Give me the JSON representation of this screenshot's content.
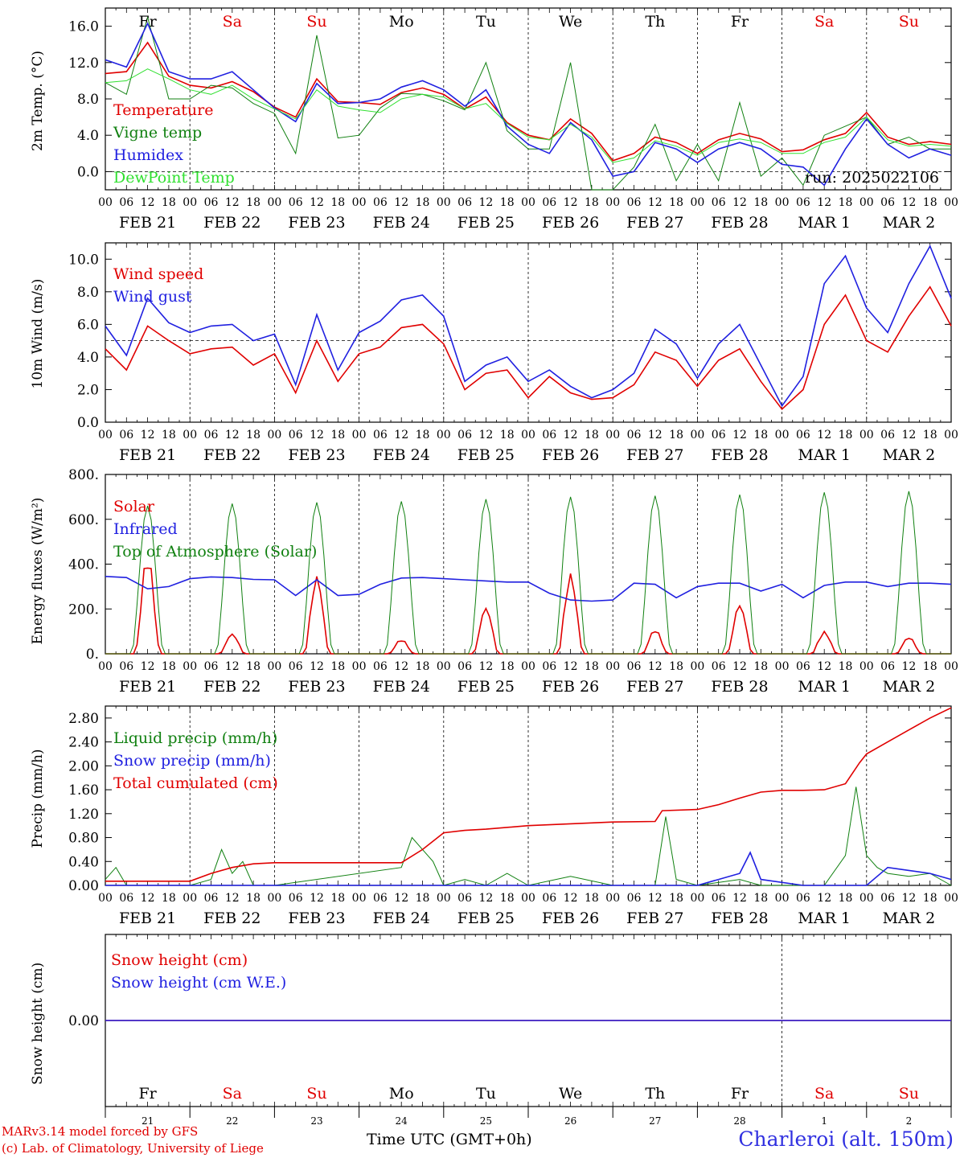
{
  "run_label": "run: 2025022106",
  "hour_ticks": [
    "00",
    "06",
    "12",
    "18"
  ],
  "days": [
    {
      "abbr": "Fr",
      "date": "FEB  21",
      "num": "21",
      "weekend": false
    },
    {
      "abbr": "Sa",
      "date": "FEB  22",
      "num": "22",
      "weekend": true
    },
    {
      "abbr": "Su",
      "date": "FEB  23",
      "num": "23",
      "weekend": true
    },
    {
      "abbr": "Mo",
      "date": "FEB  24",
      "num": "24",
      "weekend": false
    },
    {
      "abbr": "Tu",
      "date": "FEB  25",
      "num": "25",
      "weekend": false
    },
    {
      "abbr": "We",
      "date": "FEB  26",
      "num": "26",
      "weekend": false
    },
    {
      "abbr": "Th",
      "date": "FEB  27",
      "num": "27",
      "weekend": false
    },
    {
      "abbr": "Fr",
      "date": "FEB  28",
      "num": "28",
      "weekend": false
    },
    {
      "abbr": "Sa",
      "date": "MAR   1",
      "num": "1",
      "weekend": true
    },
    {
      "abbr": "Su",
      "date": "MAR   2",
      "num": "2",
      "weekend": true
    }
  ],
  "colors": {
    "red": "#e00000",
    "green": "#108010",
    "blue": "#2020e0",
    "lightgreen": "#30e030",
    "weekend": "#e00000"
  },
  "footer": {
    "model_line": "MARv3.14 model forced by GFS",
    "credit_line": "(c) Lab. of Climatology, University of Liege",
    "axis_label": "Time UTC (GMT+0h)",
    "station": "Charleroi (alt. 150m)"
  },
  "chart_data": [
    {
      "type": "line",
      "ylabel": "2m Temp. (°C)",
      "ylim": [
        -2,
        18
      ],
      "yticks": [
        0,
        4,
        8,
        12,
        16
      ],
      "ytick_labels": [
        "0.0",
        "4.0",
        "8.0",
        "12.0",
        "16.0"
      ],
      "ref_line": 0,
      "x_unit": "hours from FEB 21 00 UTC",
      "series": [
        {
          "name": "Temperature",
          "color": "red",
          "x": [
            0,
            6,
            12,
            18,
            24,
            30,
            36,
            42,
            48,
            54,
            60,
            66,
            72,
            78,
            84,
            90,
            96,
            102,
            108,
            114,
            120,
            126,
            132,
            138,
            144,
            150,
            156,
            162,
            168,
            174,
            180,
            186,
            192,
            198,
            204,
            210,
            216,
            222,
            228,
            234,
            240
          ],
          "y": [
            10.8,
            11.0,
            14.2,
            10.5,
            9.5,
            9.2,
            9.9,
            8.8,
            7.1,
            6.0,
            10.2,
            7.7,
            7.6,
            7.4,
            8.7,
            9.2,
            8.5,
            6.9,
            8.2,
            5.4,
            4.0,
            3.5,
            5.8,
            4.2,
            1.2,
            2.0,
            3.8,
            3.2,
            2.0,
            3.5,
            4.2,
            3.6,
            2.2,
            2.4,
            3.5,
            4.2,
            6.5,
            3.8,
            3.0,
            3.3,
            3.0
          ]
        },
        {
          "name": "Vigne temp",
          "color": "green",
          "x": [
            0,
            6,
            12,
            18,
            24,
            30,
            36,
            42,
            48,
            54,
            60,
            66,
            72,
            78,
            84,
            90,
            96,
            102,
            108,
            114,
            120,
            126,
            132,
            138,
            144,
            150,
            156,
            162,
            168,
            174,
            180,
            186,
            192,
            198,
            204,
            210,
            216,
            222,
            228,
            234,
            240
          ],
          "y": [
            9.8,
            8.5,
            17.0,
            8.0,
            8.0,
            9.5,
            9.2,
            7.5,
            6.4,
            2.0,
            15.0,
            3.7,
            4.0,
            7.0,
            8.6,
            8.5,
            7.8,
            6.8,
            12.0,
            4.5,
            2.5,
            2.5,
            12.0,
            -2.0,
            -3.0,
            0.5,
            5.2,
            -1.0,
            3.0,
            -1.0,
            7.6,
            -0.5,
            1.5,
            -1.5,
            4.0,
            5.0,
            6.0,
            3.0,
            3.8,
            2.5,
            2.5
          ]
        },
        {
          "name": "Humidex",
          "color": "blue",
          "x": [
            0,
            6,
            12,
            18,
            24,
            30,
            36,
            42,
            48,
            54,
            60,
            66,
            72,
            78,
            84,
            90,
            96,
            102,
            108,
            114,
            120,
            126,
            132,
            138,
            144,
            150,
            156,
            162,
            168,
            174,
            180,
            186,
            192,
            198,
            204,
            210,
            216,
            222,
            228,
            234,
            240
          ],
          "y": [
            12.3,
            11.5,
            16.3,
            11.0,
            10.2,
            10.2,
            11.0,
            9.0,
            7.0,
            5.5,
            9.7,
            7.5,
            7.6,
            8.0,
            9.3,
            10.0,
            9.0,
            7.2,
            9.0,
            5.0,
            3.0,
            2.0,
            5.4,
            3.5,
            -0.5,
            0.0,
            3.2,
            2.5,
            1.0,
            2.5,
            3.2,
            2.5,
            0.8,
            0.5,
            -1.5,
            2.5,
            5.8,
            3.0,
            1.5,
            2.5,
            1.8
          ]
        },
        {
          "name": "DewPoint Temp",
          "color": "lightgreen",
          "x": [
            0,
            6,
            12,
            18,
            24,
            30,
            36,
            42,
            48,
            54,
            60,
            66,
            72,
            78,
            84,
            90,
            96,
            102,
            108,
            114,
            120,
            126,
            132,
            138,
            144,
            150,
            156,
            162,
            168,
            174,
            180,
            186,
            192,
            198,
            204,
            210,
            216,
            222,
            228,
            234,
            240
          ],
          "y": [
            9.8,
            10.0,
            11.3,
            10.2,
            9.0,
            8.5,
            9.5,
            8.0,
            6.9,
            5.8,
            9.0,
            7.2,
            6.8,
            6.5,
            8.0,
            8.5,
            8.2,
            6.9,
            7.5,
            5.3,
            3.8,
            3.5,
            5.2,
            3.8,
            1.0,
            1.5,
            3.4,
            2.8,
            1.8,
            3.2,
            3.6,
            3.2,
            2.0,
            2.0,
            3.2,
            3.8,
            6.0,
            3.5,
            2.8,
            3.0,
            2.8
          ]
        }
      ]
    },
    {
      "type": "line",
      "ylabel": "10m Wind (m/s)",
      "ylim": [
        0,
        11
      ],
      "yticks": [
        0,
        2,
        4,
        6,
        8,
        10
      ],
      "ytick_labels": [
        "0.0",
        "2.0",
        "4.0",
        "6.0",
        "8.0",
        "10.0"
      ],
      "ref_line": 5,
      "x_unit": "hours from FEB 21 00 UTC",
      "series": [
        {
          "name": "Wind speed",
          "color": "red",
          "x": [
            0,
            6,
            12,
            18,
            24,
            30,
            36,
            42,
            48,
            54,
            60,
            66,
            72,
            78,
            84,
            90,
            96,
            102,
            108,
            114,
            120,
            126,
            132,
            138,
            144,
            150,
            156,
            162,
            168,
            174,
            180,
            186,
            192,
            198,
            204,
            210,
            216,
            222,
            228,
            234,
            240
          ],
          "y": [
            4.5,
            3.2,
            5.9,
            5.0,
            4.2,
            4.5,
            4.6,
            3.5,
            4.2,
            1.8,
            5.0,
            2.5,
            4.2,
            4.6,
            5.8,
            6.0,
            4.8,
            2.0,
            3.0,
            3.2,
            1.5,
            2.8,
            1.8,
            1.4,
            1.5,
            2.3,
            4.3,
            3.8,
            2.2,
            3.8,
            4.5,
            2.5,
            0.8,
            2.0,
            6.0,
            7.8,
            5.0,
            4.3,
            6.5,
            8.3,
            5.9
          ]
        },
        {
          "name": "Wind gust",
          "color": "blue",
          "x": [
            0,
            6,
            12,
            18,
            24,
            30,
            36,
            42,
            48,
            54,
            60,
            66,
            72,
            78,
            84,
            90,
            96,
            102,
            108,
            114,
            120,
            126,
            132,
            138,
            144,
            150,
            156,
            162,
            168,
            174,
            180,
            186,
            192,
            198,
            204,
            210,
            216,
            222,
            228,
            234,
            240
          ],
          "y": [
            5.9,
            4.1,
            7.6,
            6.1,
            5.5,
            5.9,
            6.0,
            5.0,
            5.4,
            2.3,
            6.6,
            3.2,
            5.5,
            6.2,
            7.5,
            7.8,
            6.5,
            2.5,
            3.5,
            4.0,
            2.5,
            3.2,
            2.2,
            1.5,
            2.0,
            3.0,
            5.7,
            4.8,
            2.7,
            4.8,
            6.0,
            3.5,
            1.0,
            2.8,
            8.5,
            10.2,
            7.0,
            5.5,
            8.5,
            10.8,
            7.6
          ]
        }
      ]
    },
    {
      "type": "line",
      "ylabel": "Energy fluxes (W/m²)",
      "ylim": [
        0,
        800
      ],
      "yticks": [
        0,
        200,
        400,
        600,
        800
      ],
      "ytick_labels": [
        "0.",
        "200.",
        "400.",
        "600.",
        "800."
      ],
      "x_unit": "hours from FEB 21 00 UTC",
      "series": [
        {
          "name": "Solar",
          "color": "red",
          "peaks": [
            {
              "day": 0,
              "value": 450
            },
            {
              "day": 1,
              "value": 90
            },
            {
              "day": 2,
              "value": 350
            },
            {
              "day": 3,
              "value": 65
            },
            {
              "day": 4,
              "value": 210
            },
            {
              "day": 5,
              "value": 360
            },
            {
              "day": 6,
              "value": 110
            },
            {
              "day": 7,
              "value": 225
            },
            {
              "day": 8,
              "value": 100
            },
            {
              "day": 9,
              "value": 75
            }
          ]
        },
        {
          "name": "Infrared",
          "color": "blue",
          "x": [
            0,
            6,
            12,
            18,
            24,
            30,
            36,
            42,
            48,
            54,
            60,
            66,
            72,
            78,
            84,
            90,
            96,
            102,
            108,
            114,
            120,
            126,
            132,
            138,
            144,
            150,
            156,
            162,
            168,
            174,
            180,
            186,
            192,
            198,
            204,
            210,
            216,
            222,
            228,
            234,
            240
          ],
          "y": [
            345,
            340,
            290,
            300,
            335,
            343,
            340,
            332,
            330,
            260,
            330,
            260,
            265,
            310,
            338,
            340,
            335,
            330,
            325,
            320,
            320,
            270,
            240,
            235,
            240,
            315,
            310,
            250,
            300,
            315,
            315,
            280,
            310,
            250,
            305,
            320,
            320,
            300,
            315,
            315,
            310
          ]
        },
        {
          "name": "Top of Atmosphere (Solar)",
          "color": "green",
          "peaks": [
            {
              "day": 0,
              "value": 660
            },
            {
              "day": 1,
              "value": 670
            },
            {
              "day": 2,
              "value": 675
            },
            {
              "day": 3,
              "value": 680
            },
            {
              "day": 4,
              "value": 690
            },
            {
              "day": 5,
              "value": 700
            },
            {
              "day": 6,
              "value": 705
            },
            {
              "day": 7,
              "value": 710
            },
            {
              "day": 8,
              "value": 720
            },
            {
              "day": 9,
              "value": 725
            }
          ]
        }
      ]
    },
    {
      "type": "line",
      "ylabel": "Precip (mm/h)",
      "ylim": [
        0,
        3.0
      ],
      "yticks": [
        0,
        0.4,
        0.8,
        1.2,
        1.6,
        2.0,
        2.4,
        2.8
      ],
      "ytick_labels": [
        "0.00",
        "0.40",
        "0.80",
        "1.20",
        "1.60",
        "2.00",
        "2.40",
        "2.80"
      ],
      "x_unit": "hours from FEB 21 00 UTC",
      "series": [
        {
          "name": "Liquid precip (mm/h)",
          "color": "green",
          "x": [
            0,
            3,
            6,
            24,
            30,
            33,
            36,
            39,
            42,
            48,
            84,
            87,
            90,
            93,
            96,
            102,
            108,
            114,
            120,
            132,
            144,
            156,
            159,
            162,
            168,
            180,
            186,
            198,
            204,
            210,
            213,
            216,
            219,
            222,
            228,
            234,
            240
          ],
          "y": [
            0.1,
            0.3,
            0.0,
            0.0,
            0.1,
            0.6,
            0.2,
            0.4,
            0.0,
            0.0,
            0.3,
            0.8,
            0.6,
            0.4,
            0.0,
            0.1,
            0.0,
            0.2,
            0.0,
            0.15,
            0.0,
            0.0,
            1.15,
            0.1,
            0.0,
            0.1,
            0.0,
            0.0,
            0.0,
            0.5,
            1.65,
            0.5,
            0.3,
            0.2,
            0.15,
            0.2,
            0.0
          ]
        },
        {
          "name": "Snow precip (mm/h)",
          "color": "blue",
          "x": [
            0,
            168,
            174,
            180,
            183,
            186,
            198,
            216,
            222,
            228,
            234,
            240
          ],
          "y": [
            0,
            0,
            0.1,
            0.2,
            0.55,
            0.1,
            0,
            0,
            0.3,
            0.25,
            0.2,
            0.1
          ]
        },
        {
          "name": "Total cumulated (cm)",
          "color": "red",
          "x": [
            0,
            24,
            30,
            36,
            42,
            48,
            84,
            90,
            96,
            102,
            108,
            120,
            144,
            156,
            158,
            168,
            174,
            180,
            186,
            192,
            198,
            204,
            210,
            214,
            216,
            222,
            228,
            234,
            240
          ],
          "y": [
            0.07,
            0.07,
            0.2,
            0.3,
            0.36,
            0.38,
            0.38,
            0.6,
            0.88,
            0.92,
            0.94,
            1.0,
            1.06,
            1.07,
            1.25,
            1.27,
            1.35,
            1.46,
            1.56,
            1.59,
            1.59,
            1.6,
            1.7,
            2.05,
            2.2,
            2.4,
            2.6,
            2.8,
            2.97
          ]
        }
      ]
    },
    {
      "type": "line",
      "ylabel": "Snow height (cm)",
      "ylim": [
        -1,
        1
      ],
      "yticks": [
        0
      ],
      "ytick_labels": [
        "0.00"
      ],
      "x_unit": "hours from FEB 21 00 UTC",
      "series": [
        {
          "name": "Snow height (cm)",
          "color": "red",
          "x": [
            0,
            240
          ],
          "y": [
            0,
            0
          ]
        },
        {
          "name": "Snow height (cm W.E.)",
          "color": "blue",
          "x": [
            0,
            240
          ],
          "y": [
            0,
            0
          ]
        }
      ]
    }
  ]
}
